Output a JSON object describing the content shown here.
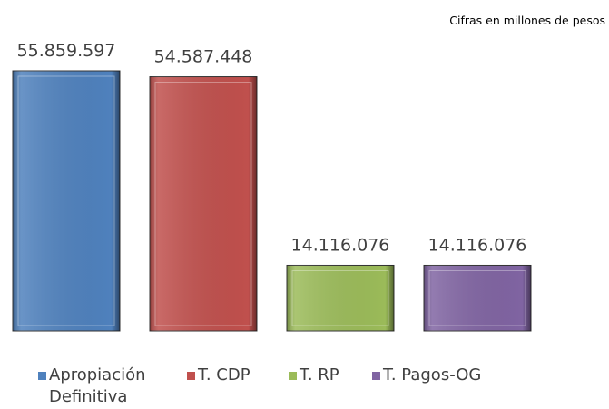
{
  "chart_data": {
    "type": "bar",
    "subtitle": "Cifras en millones de pesos",
    "series": [
      {
        "name": "Apropiación Definitiva",
        "color": "#4f81bd",
        "values": [
          55859597
        ],
        "value_labels": [
          "55.859.597"
        ]
      },
      {
        "name": "T. CDP",
        "color": "#c0504d",
        "values": [
          54587448
        ],
        "value_labels": [
          "54.587.448"
        ]
      },
      {
        "name": "T. RP",
        "color": "#9bbb59",
        "values": [
          14116076
        ],
        "value_labels": [
          "14.116.076"
        ]
      },
      {
        "name": "T. Pagos-OG",
        "color": "#8064a2",
        "values": [
          14116076
        ],
        "value_labels": [
          "14.116.076"
        ]
      }
    ],
    "legend": "bottom"
  }
}
